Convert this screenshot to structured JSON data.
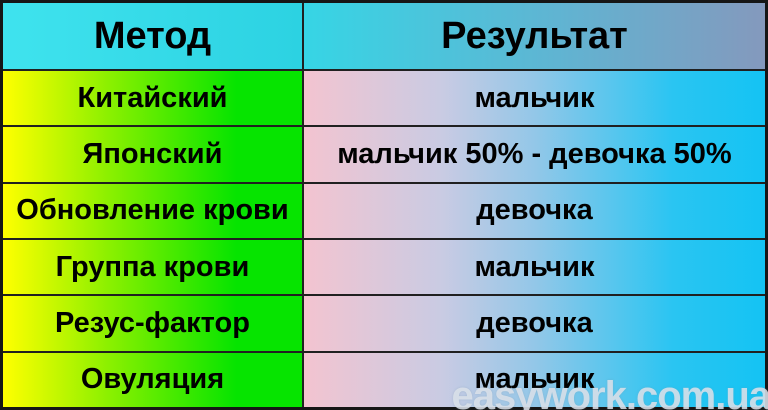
{
  "chart_data": {
    "type": "table",
    "columns": [
      "Метод",
      "Результат"
    ],
    "rows": [
      [
        "Китайский",
        "мальчик"
      ],
      [
        "Японский",
        "мальчик 50% - девочка 50%"
      ],
      [
        "Обновление крови",
        "девочка"
      ],
      [
        "Группа крови",
        "мальчик"
      ],
      [
        "Резус-фактор",
        "девочка"
      ],
      [
        "Овуляция",
        "мальчик"
      ]
    ]
  },
  "watermark": "easywork.com.ua",
  "colors": {
    "method_cell_gradient": [
      "#ffff00",
      "#06e400"
    ],
    "result_cell_gradient": [
      "#f3c4d0",
      "#c9cbe3",
      "#14c3f3"
    ],
    "header_method_gradient": [
      "#3fe3ee",
      "#2cd2e2"
    ],
    "header_result_gradient": [
      "#36d5e5",
      "#8499bd"
    ],
    "grid_line": "#202020",
    "text": "#000000",
    "watermark_text": "#dde3eb"
  }
}
